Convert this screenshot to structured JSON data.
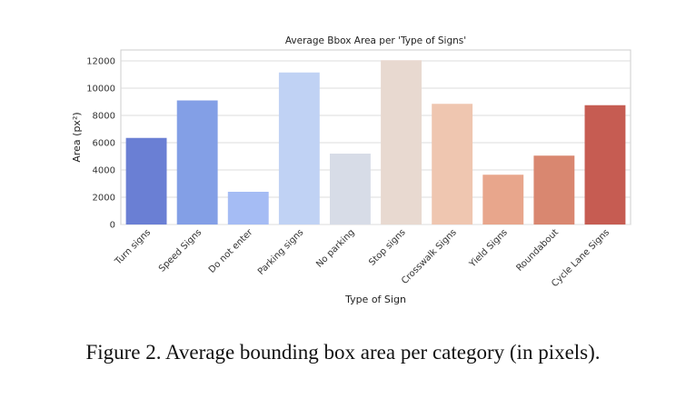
{
  "chart_data": {
    "type": "bar",
    "title": "Average Bbox Area per 'Type of Signs'",
    "xlabel": "Type of Sign",
    "ylabel": "Area (px²)",
    "ylim": [
      0,
      12800
    ],
    "yticks": [
      0,
      2000,
      4000,
      6000,
      8000,
      10000,
      12000
    ],
    "grid": "horizontal",
    "categories": [
      "Turn signs",
      "Speed Signs",
      "Do not enter",
      "Parking signs",
      "No parking",
      "Stop signs",
      "Crosswalk Signs",
      "Yield Signs",
      "Roundabout",
      "Cycle Lane Signs"
    ],
    "values": [
      6350,
      9100,
      2400,
      11150,
      5200,
      12050,
      8850,
      3650,
      5050,
      8750
    ],
    "colors": [
      "#6a7fd4",
      "#839fe6",
      "#a5bcf4",
      "#c0d2f4",
      "#d7dce7",
      "#e8d9d0",
      "#efc6b0",
      "#e8a68c",
      "#d98770",
      "#c65c52"
    ]
  },
  "caption": "Figure 2. Average bounding box area per category (in pixels)."
}
